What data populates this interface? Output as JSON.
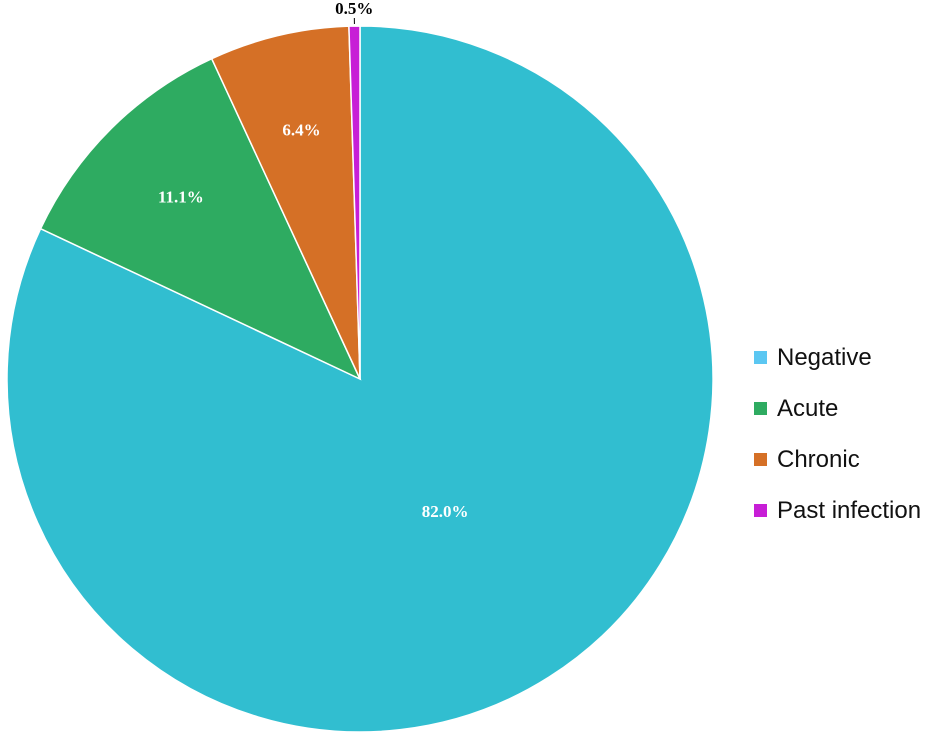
{
  "chart_data": {
    "type": "pie",
    "categories": [
      "Negative",
      "Acute",
      "Chronic",
      "Past infection"
    ],
    "values": [
      82.0,
      11.1,
      6.4,
      0.5
    ],
    "data_labels": [
      "82.0%",
      "11.1%",
      "6.4%",
      "0.5%"
    ],
    "colors": [
      "#31BED0",
      "#2EAB61",
      "#D57026",
      "#C71ED6"
    ],
    "legend_colors": [
      "#5BC7F2",
      "#2EAB61",
      "#D57026",
      "#C71ED6"
    ],
    "legend_position": "right",
    "start_angle": "12 o'clock",
    "direction": "clockwise",
    "title": "",
    "xlabel": "",
    "ylabel": ""
  }
}
